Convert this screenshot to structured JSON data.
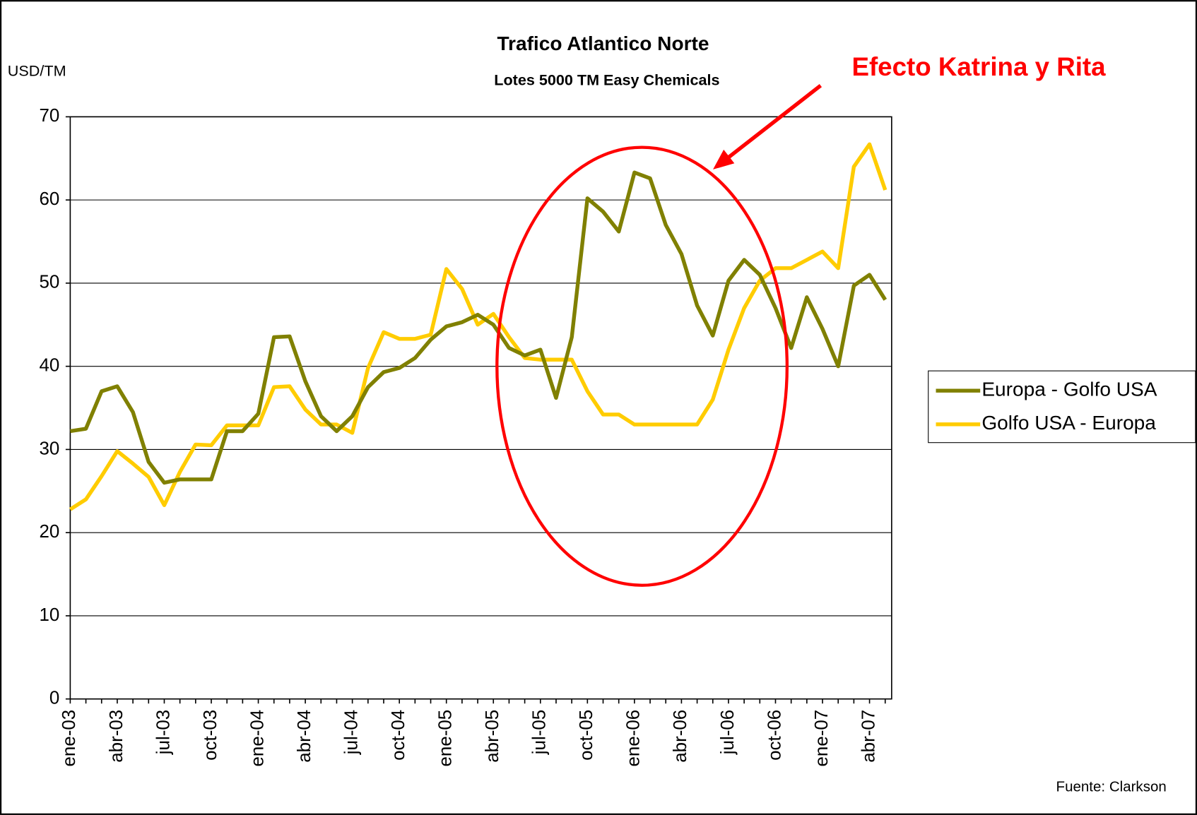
{
  "chart_data": {
    "type": "line",
    "title": "Trafico Atlantico Norte",
    "subtitle": "Lotes 5000 TM Easy Chemicals",
    "y_axis_label": "USD/TM",
    "annotation": "Efecto Katrina y Rita",
    "source": "Fuente: Clarkson",
    "categories": [
      "ene-03",
      null,
      null,
      "abr-03",
      null,
      null,
      "jul-03",
      null,
      null,
      "oct-03",
      null,
      null,
      "ene-04",
      null,
      null,
      "abr-04",
      null,
      null,
      "jul-04",
      null,
      null,
      "oct-04",
      null,
      null,
      "ene-05",
      null,
      null,
      "abr-05",
      null,
      null,
      "jul-05",
      null,
      null,
      "oct-05",
      null,
      null,
      "ene-06",
      null,
      null,
      "abr-06",
      null,
      null,
      "jul-06",
      null,
      null,
      "oct-06",
      null,
      null,
      "ene-07",
      null,
      null,
      "abr-07",
      null
    ],
    "series": [
      {
        "name": "Europa - Golfo USA",
        "color": "#808000",
        "values": [
          32.2,
          32.5,
          37.0,
          37.6,
          34.5,
          28.5,
          26.0,
          26.4,
          26.4,
          26.4,
          32.2,
          32.2,
          34.3,
          43.5,
          43.6,
          38.2,
          34.0,
          32.2,
          34.0,
          37.5,
          39.3,
          39.8,
          41.0,
          43.2,
          44.8,
          45.3,
          46.2,
          45.0,
          42.2,
          41.3,
          42.0,
          36.2,
          43.5,
          60.2,
          58.6,
          56.2,
          63.3,
          62.6,
          57.0,
          53.5,
          47.3,
          43.7,
          50.3,
          52.8,
          51.0,
          47.0,
          42.2,
          48.3,
          44.5,
          40.0,
          49.7,
          51.0,
          48.0
        ]
      },
      {
        "name": "Golfo USA - Europa",
        "color": "#ffcc00",
        "values": [
          22.8,
          24.0,
          26.8,
          29.8,
          28.3,
          26.7,
          23.3,
          27.3,
          30.6,
          30.5,
          32.9,
          32.9,
          32.9,
          37.5,
          37.6,
          34.8,
          33.0,
          33.0,
          32.0,
          39.8,
          44.1,
          43.3,
          43.3,
          43.8,
          51.7,
          49.3,
          45.0,
          46.3,
          43.5,
          41.0,
          40.8,
          40.8,
          40.8,
          37.0,
          34.2,
          34.2,
          33.0,
          33.0,
          33.0,
          33.0,
          33.0,
          36.0,
          42.0,
          47.0,
          50.3,
          51.8,
          51.8,
          52.8,
          53.8,
          51.8,
          64.0,
          66.7,
          61.2
        ]
      }
    ],
    "ylim": [
      0,
      70
    ],
    "yticks": [
      0,
      10,
      20,
      30,
      40,
      50,
      60,
      70
    ],
    "grid": true,
    "legend": "right"
  }
}
